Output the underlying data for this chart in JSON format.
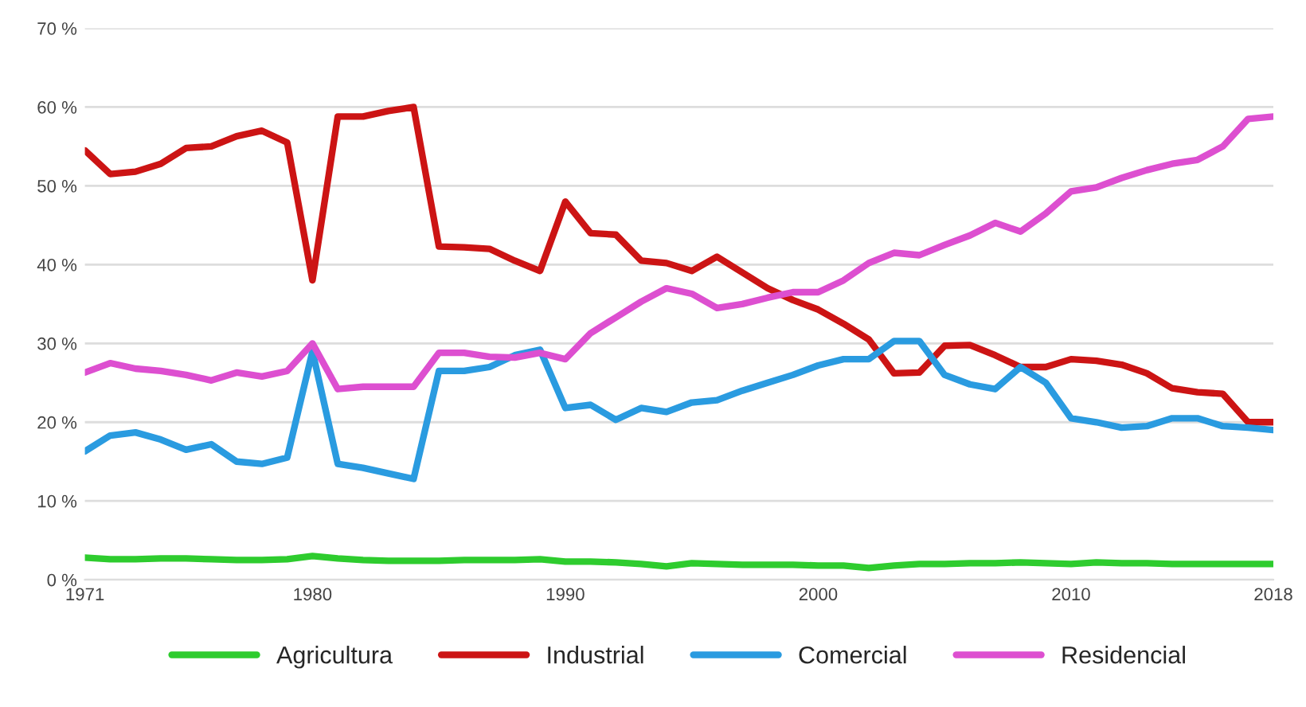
{
  "chart_data": {
    "type": "line",
    "x": [
      1971,
      1972,
      1973,
      1974,
      1975,
      1976,
      1977,
      1978,
      1979,
      1980,
      1981,
      1982,
      1983,
      1984,
      1985,
      1986,
      1987,
      1988,
      1989,
      1990,
      1991,
      1992,
      1993,
      1994,
      1995,
      1996,
      1997,
      1998,
      1999,
      2000,
      2001,
      2002,
      2003,
      2004,
      2005,
      2006,
      2007,
      2008,
      2009,
      2010,
      2011,
      2012,
      2013,
      2014,
      2015,
      2016,
      2017,
      2018
    ],
    "series": [
      {
        "name": "Agricultura",
        "color": "#2ecc2e",
        "values": [
          2.8,
          2.6,
          2.6,
          2.7,
          2.7,
          2.6,
          2.5,
          2.5,
          2.6,
          3.0,
          2.7,
          2.5,
          2.4,
          2.4,
          2.4,
          2.5,
          2.5,
          2.5,
          2.6,
          2.3,
          2.3,
          2.2,
          2.0,
          1.7,
          2.1,
          2.0,
          1.9,
          1.9,
          1.9,
          1.8,
          1.8,
          1.5,
          1.8,
          2.0,
          2.0,
          2.1,
          2.1,
          2.2,
          2.1,
          2.0,
          2.2,
          2.1,
          2.1,
          2.0,
          2.0,
          2.0,
          2.0,
          2.0
        ]
      },
      {
        "name": "Industrial",
        "color": "#cc1414",
        "values": [
          54.5,
          51.5,
          51.8,
          52.8,
          54.8,
          55,
          56.3,
          57,
          55.5,
          38,
          58.8,
          58.8,
          59.5,
          60,
          42.3,
          42.2,
          42,
          40.5,
          39.2,
          48,
          44,
          43.8,
          40.5,
          40.2,
          39.2,
          41,
          39,
          37,
          35.5,
          34.3,
          32.5,
          30.5,
          26.2,
          26.3,
          29.7,
          29.8,
          28.5,
          27,
          27,
          28,
          27.8,
          27.3,
          26.2,
          24.3,
          23.8,
          23.6,
          20,
          20
        ]
      },
      {
        "name": "Comercial",
        "color": "#2a9be0",
        "values": [
          16.3,
          18.3,
          18.7,
          17.8,
          16.5,
          17.2,
          15,
          14.7,
          15.5,
          29,
          14.7,
          14.2,
          13.5,
          12.8,
          26.5,
          26.5,
          27,
          28.5,
          29.2,
          21.8,
          22.2,
          20.3,
          21.8,
          21.3,
          22.5,
          22.8,
          24,
          25,
          26,
          27.2,
          28,
          28,
          30.3,
          30.3,
          26,
          24.8,
          24.2,
          27,
          25,
          20.5,
          20,
          19.3,
          19.5,
          20.5,
          20.5,
          19.5,
          19.3,
          19
        ]
      },
      {
        "name": "Residencial",
        "color": "#dd4fd0",
        "values": [
          26.3,
          27.5,
          26.8,
          26.5,
          26,
          25.3,
          26.3,
          25.8,
          26.5,
          30,
          24.2,
          24.5,
          24.5,
          24.5,
          28.8,
          28.8,
          28.3,
          28.2,
          28.8,
          28,
          31.3,
          33.3,
          35.3,
          37,
          36.3,
          34.5,
          35,
          35.8,
          36.5,
          36.5,
          38,
          40.2,
          41.5,
          41.2,
          42.5,
          43.7,
          45.3,
          44.2,
          46.5,
          49.3,
          49.8,
          51,
          52,
          52.8,
          53.3,
          55,
          58.5,
          58.8
        ]
      }
    ],
    "xlim": [
      1971,
      2018
    ],
    "xticks": [
      1971,
      1980,
      1990,
      2000,
      2010,
      2018
    ],
    "ylim": [
      0,
      70
    ],
    "yticks": [
      {
        "value": 0,
        "label": "0 %"
      },
      {
        "value": 10,
        "label": "10 %"
      },
      {
        "value": 20,
        "label": "20 %"
      },
      {
        "value": 30,
        "label": "30 %"
      },
      {
        "value": 40,
        "label": "40 %"
      },
      {
        "value": 50,
        "label": "50 %"
      },
      {
        "value": 60,
        "label": "60 %"
      },
      {
        "value": 70,
        "label": "70 %"
      }
    ],
    "grid": "y",
    "legend": "bottom",
    "marker": "none",
    "line_style": "solid"
  }
}
